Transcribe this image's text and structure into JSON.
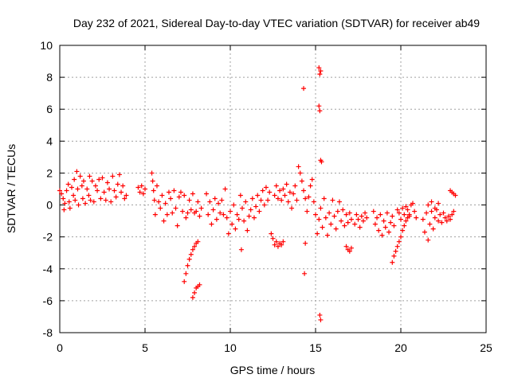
{
  "chart_data": {
    "type": "scatter",
    "title": "Day 232 of 2021, Sidereal Day-to-day VTEC variation (SDTVAR) for receiver ab49",
    "xlabel": "GPS time / hours",
    "ylabel": "SDTVAR / TECUs",
    "xlim": [
      0,
      25
    ],
    "ylim": [
      -8,
      10
    ],
    "xticks": [
      "0",
      "5",
      "10",
      "15",
      "20",
      "25"
    ],
    "yticks": [
      "-8",
      "-6",
      "-4",
      "-2",
      "0",
      "2",
      "4",
      "6",
      "8",
      "10"
    ],
    "grid": true,
    "marker": "+",
    "color": "#ff0000",
    "series": [
      {
        "name": "ab49",
        "points": [
          [
            0.0,
            0.9
          ],
          [
            0.1,
            0.7
          ],
          [
            0.2,
            0.4
          ],
          [
            0.25,
            -0.3
          ],
          [
            0.3,
            0.1
          ],
          [
            0.4,
            0.9
          ],
          [
            0.5,
            1.3
          ],
          [
            0.55,
            0.2
          ],
          [
            0.6,
            -0.2
          ],
          [
            0.7,
            1.1
          ],
          [
            0.8,
            0.6
          ],
          [
            0.85,
            1.6
          ],
          [
            0.9,
            0.3
          ],
          [
            1.0,
            2.1
          ],
          [
            1.05,
            1.0
          ],
          [
            1.1,
            0.0
          ],
          [
            1.2,
            1.8
          ],
          [
            1.3,
            1.2
          ],
          [
            1.35,
            0.4
          ],
          [
            1.4,
            1.5
          ],
          [
            1.5,
            0.1
          ],
          [
            1.6,
            1.0
          ],
          [
            1.7,
            0.6
          ],
          [
            1.75,
            1.8
          ],
          [
            1.8,
            0.3
          ],
          [
            1.9,
            1.5
          ],
          [
            2.0,
            0.2
          ],
          [
            2.1,
            1.2
          ],
          [
            2.2,
            0.9
          ],
          [
            2.3,
            1.6
          ],
          [
            2.4,
            0.4
          ],
          [
            2.5,
            1.7
          ],
          [
            2.6,
            0.8
          ],
          [
            2.7,
            0.3
          ],
          [
            2.8,
            1.4
          ],
          [
            2.9,
            1.0
          ],
          [
            3.0,
            0.2
          ],
          [
            3.1,
            1.8
          ],
          [
            3.2,
            0.9
          ],
          [
            3.3,
            0.5
          ],
          [
            3.4,
            1.3
          ],
          [
            3.5,
            1.9
          ],
          [
            3.6,
            0.8
          ],
          [
            3.7,
            1.2
          ],
          [
            3.8,
            0.4
          ],
          [
            3.9,
            0.6
          ],
          [
            4.6,
            1.1
          ],
          [
            4.7,
            0.8
          ],
          [
            4.8,
            1.2
          ],
          [
            4.9,
            0.7
          ],
          [
            5.0,
            1.0
          ],
          [
            5.4,
            2.0
          ],
          [
            5.45,
            1.5
          ],
          [
            5.5,
            0.9
          ],
          [
            5.55,
            0.3
          ],
          [
            5.6,
            -0.6
          ],
          [
            5.7,
            1.2
          ],
          [
            5.8,
            0.2
          ],
          [
            5.9,
            -0.2
          ],
          [
            6.0,
            0.6
          ],
          [
            6.1,
            -1.0
          ],
          [
            6.2,
            0.1
          ],
          [
            6.3,
            -0.6
          ],
          [
            6.4,
            0.8
          ],
          [
            6.5,
            0.4
          ],
          [
            6.6,
            -0.5
          ],
          [
            6.7,
            0.9
          ],
          [
            6.8,
            -0.2
          ],
          [
            6.9,
            -1.3
          ],
          [
            7.0,
            0.5
          ],
          [
            7.1,
            0.8
          ],
          [
            7.2,
            -0.4
          ],
          [
            7.3,
            0.6
          ],
          [
            7.4,
            -0.8
          ],
          [
            7.5,
            -0.5
          ],
          [
            7.6,
            0.3
          ],
          [
            7.7,
            -0.3
          ],
          [
            7.8,
            0.7
          ],
          [
            7.9,
            -0.5
          ],
          [
            8.0,
            -0.4
          ],
          [
            8.1,
            0.2
          ],
          [
            8.2,
            -0.7
          ],
          [
            8.3,
            -0.2
          ],
          [
            7.3,
            -4.8
          ],
          [
            7.4,
            -4.3
          ],
          [
            7.5,
            -3.8
          ],
          [
            7.6,
            -3.4
          ],
          [
            7.7,
            -3.1
          ],
          [
            7.8,
            -2.8
          ],
          [
            7.9,
            -2.6
          ],
          [
            8.0,
            -2.4
          ],
          [
            8.1,
            -2.3
          ],
          [
            7.8,
            -5.8
          ],
          [
            7.9,
            -5.5
          ],
          [
            8.0,
            -5.2
          ],
          [
            8.1,
            -5.1
          ],
          [
            8.2,
            -5.0
          ],
          [
            8.6,
            0.7
          ],
          [
            8.7,
            -0.6
          ],
          [
            8.8,
            0.2
          ],
          [
            8.9,
            -1.2
          ],
          [
            9.0,
            -0.3
          ],
          [
            9.1,
            0.4
          ],
          [
            9.2,
            -0.9
          ],
          [
            9.3,
            0.1
          ],
          [
            9.4,
            -0.5
          ],
          [
            9.5,
            0.3
          ],
          [
            9.6,
            -0.6
          ],
          [
            9.7,
            1.0
          ],
          [
            9.8,
            -0.8
          ],
          [
            9.9,
            -1.8
          ],
          [
            10.0,
            -0.4
          ],
          [
            10.1,
            -1.2
          ],
          [
            10.2,
            0.0
          ],
          [
            10.3,
            -1.5
          ],
          [
            10.4,
            -0.6
          ],
          [
            10.5,
            -0.9
          ],
          [
            10.6,
            0.6
          ],
          [
            10.65,
            -2.8
          ],
          [
            10.7,
            -0.2
          ],
          [
            10.8,
            -1.0
          ],
          [
            10.9,
            0.2
          ],
          [
            11.0,
            -1.6
          ],
          [
            11.1,
            -0.7
          ],
          [
            11.2,
            -0.3
          ],
          [
            11.3,
            0.4
          ],
          [
            11.4,
            -0.8
          ],
          [
            11.5,
            -0.1
          ],
          [
            11.6,
            0.6
          ],
          [
            11.7,
            -0.4
          ],
          [
            11.8,
            0.3
          ],
          [
            11.9,
            0.9
          ],
          [
            12.0,
            0.0
          ],
          [
            12.1,
            1.1
          ],
          [
            12.2,
            0.3
          ],
          [
            12.3,
            0.8
          ],
          [
            12.4,
            -1.8
          ],
          [
            12.5,
            -2.1
          ],
          [
            12.6,
            -2.5
          ],
          [
            12.7,
            -2.3
          ],
          [
            12.8,
            -2.6
          ],
          [
            12.9,
            -2.4
          ],
          [
            13.0,
            -2.5
          ],
          [
            13.1,
            -2.3
          ],
          [
            12.6,
            0.6
          ],
          [
            12.7,
            1.2
          ],
          [
            12.8,
            0.4
          ],
          [
            12.9,
            0.9
          ],
          [
            13.0,
            0.3
          ],
          [
            13.1,
            1.0
          ],
          [
            13.2,
            0.6
          ],
          [
            13.3,
            1.3
          ],
          [
            13.4,
            0.2
          ],
          [
            13.5,
            0.8
          ],
          [
            13.6,
            -0.2
          ],
          [
            13.7,
            0.7
          ],
          [
            13.8,
            1.2
          ],
          [
            13.9,
            0.3
          ],
          [
            14.0,
            2.4
          ],
          [
            14.1,
            2.0
          ],
          [
            14.2,
            1.5
          ],
          [
            14.3,
            0.9
          ],
          [
            14.4,
            0.4
          ],
          [
            14.5,
            -0.4
          ],
          [
            14.6,
            0.5
          ],
          [
            14.7,
            1.2
          ],
          [
            14.8,
            1.6
          ],
          [
            14.9,
            0.2
          ],
          [
            14.3,
            7.3
          ],
          [
            14.35,
            -4.3
          ],
          [
            14.4,
            -2.4
          ],
          [
            15.2,
            8.6
          ],
          [
            15.25,
            8.2
          ],
          [
            15.3,
            8.4
          ],
          [
            15.2,
            6.2
          ],
          [
            15.25,
            5.9
          ],
          [
            15.3,
            2.8
          ],
          [
            15.35,
            2.7
          ],
          [
            15.25,
            -6.9
          ],
          [
            15.3,
            -7.2
          ],
          [
            15.0,
            -0.6
          ],
          [
            15.1,
            -1.8
          ],
          [
            15.2,
            -0.9
          ],
          [
            15.3,
            -0.2
          ],
          [
            15.4,
            -1.4
          ],
          [
            15.5,
            0.4
          ],
          [
            15.6,
            -0.8
          ],
          [
            15.7,
            -1.9
          ],
          [
            15.8,
            -0.5
          ],
          [
            15.9,
            -1.2
          ],
          [
            16.0,
            0.3
          ],
          [
            16.1,
            -0.7
          ],
          [
            16.2,
            -1.5
          ],
          [
            16.3,
            -0.4
          ],
          [
            16.4,
            0.2
          ],
          [
            16.5,
            -1.0
          ],
          [
            16.6,
            -0.3
          ],
          [
            16.7,
            -1.3
          ],
          [
            16.8,
            -0.6
          ],
          [
            16.9,
            -1.1
          ],
          [
            17.0,
            -0.5
          ],
          [
            17.1,
            -0.9
          ],
          [
            16.8,
            -2.6
          ],
          [
            16.9,
            -2.8
          ],
          [
            17.0,
            -2.9
          ],
          [
            17.1,
            -2.7
          ],
          [
            17.3,
            -1.2
          ],
          [
            17.4,
            -0.6
          ],
          [
            17.5,
            -0.9
          ],
          [
            17.6,
            -1.4
          ],
          [
            17.7,
            -0.7
          ],
          [
            17.8,
            -1.0
          ],
          [
            17.9,
            -0.5
          ],
          [
            18.0,
            -0.8
          ],
          [
            18.4,
            -0.4
          ],
          [
            18.5,
            -1.2
          ],
          [
            18.6,
            -0.8
          ],
          [
            18.7,
            -1.6
          ],
          [
            18.8,
            -0.6
          ],
          [
            18.9,
            -1.9
          ],
          [
            19.0,
            -1.0
          ],
          [
            19.1,
            -1.4
          ],
          [
            19.2,
            -0.5
          ],
          [
            19.3,
            -1.7
          ],
          [
            19.4,
            -1.1
          ],
          [
            19.5,
            -0.7
          ],
          [
            19.6,
            -1.3
          ],
          [
            19.5,
            -3.6
          ],
          [
            19.6,
            -3.2
          ],
          [
            19.7,
            -2.9
          ],
          [
            19.8,
            -2.6
          ],
          [
            19.9,
            -2.3
          ],
          [
            20.0,
            -2.0
          ],
          [
            20.1,
            -1.6
          ],
          [
            20.2,
            -1.3
          ],
          [
            20.3,
            -1.0
          ],
          [
            20.4,
            -0.8
          ],
          [
            20.5,
            -0.6
          ],
          [
            19.8,
            -0.3
          ],
          [
            19.9,
            -0.5
          ],
          [
            20.0,
            -0.9
          ],
          [
            20.1,
            -0.2
          ],
          [
            20.2,
            -0.6
          ],
          [
            20.3,
            -0.1
          ],
          [
            20.4,
            -0.3
          ],
          [
            20.5,
            -0.7
          ],
          [
            20.6,
            0.0
          ],
          [
            20.7,
            0.1
          ],
          [
            20.8,
            -0.4
          ],
          [
            20.9,
            -0.8
          ],
          [
            21.3,
            -0.9
          ],
          [
            21.4,
            -1.7
          ],
          [
            21.5,
            -0.5
          ],
          [
            21.6,
            -2.2
          ],
          [
            21.7,
            -1.2
          ],
          [
            21.8,
            -0.4
          ],
          [
            21.9,
            -1.5
          ],
          [
            22.0,
            -0.8
          ],
          [
            22.1,
            -0.3
          ],
          [
            22.2,
            -1.0
          ],
          [
            22.3,
            -0.6
          ],
          [
            22.4,
            -1.1
          ],
          [
            22.5,
            -0.5
          ],
          [
            22.6,
            -0.8
          ],
          [
            22.7,
            -1.0
          ],
          [
            22.8,
            -0.7
          ],
          [
            22.9,
            -0.9
          ],
          [
            23.0,
            -0.6
          ],
          [
            23.1,
            -0.4
          ],
          [
            21.6,
            0.0
          ],
          [
            21.8,
            0.2
          ],
          [
            22.0,
            -0.2
          ],
          [
            22.2,
            0.1
          ],
          [
            22.9,
            0.9
          ],
          [
            23.0,
            0.8
          ],
          [
            23.1,
            0.7
          ],
          [
            23.2,
            0.6
          ]
        ]
      }
    ]
  }
}
